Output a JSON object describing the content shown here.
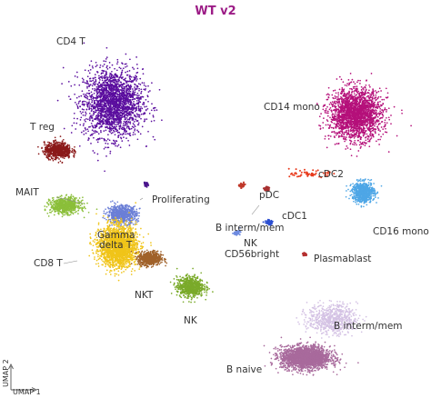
{
  "chart_data": {
    "type": "scatter",
    "title": "WT v2",
    "xlabel": "UMAP 1",
    "ylabel": "UMAP 2",
    "grid": false,
    "legend": "none",
    "title_color": "#9c1c86",
    "clusters": [
      {
        "name": "CD4 T",
        "color": "#5a0d9e",
        "center": [
          -6.7,
          7.9
        ],
        "spread": [
          2.4,
          3.0
        ],
        "density": "high"
      },
      {
        "name": "T reg",
        "color": "#8b1a1a",
        "center": [
          -11.2,
          3.7
        ],
        "spread": [
          1.1,
          0.7
        ],
        "density": "medium"
      },
      {
        "name": "MAIT",
        "color": "#8bbf3a",
        "center": [
          -10.6,
          -1.2
        ],
        "spread": [
          1.2,
          0.7
        ],
        "density": "medium"
      },
      {
        "name": "Gamma delta T",
        "color": "#6b7fd6",
        "center": [
          -6.0,
          -2.0
        ],
        "spread": [
          1.2,
          0.8
        ],
        "density": "medium"
      },
      {
        "name": "CD8 T",
        "color": "#f0c419",
        "center": [
          -6.3,
          -4.8
        ],
        "spread": [
          1.5,
          1.8
        ],
        "density": "high"
      },
      {
        "name": "NKT",
        "color": "#a0622a",
        "center": [
          -3.7,
          -5.9
        ],
        "spread": [
          0.9,
          0.6
        ],
        "density": "medium"
      },
      {
        "name": "NK",
        "color": "#7aaa2a",
        "center": [
          -0.4,
          -8.4
        ],
        "spread": [
          1.1,
          0.9
        ],
        "density": "medium"
      },
      {
        "name": "Proliferating",
        "color": "#4a148c",
        "center": [
          -4.0,
          0.7
        ],
        "spread": [
          0.15,
          0.15
        ],
        "density": "low"
      },
      {
        "name": "CD14 mono",
        "color": "#b5107a",
        "center": [
          13.1,
          6.9
        ],
        "spread": [
          2.1,
          2.2
        ],
        "density": "high"
      },
      {
        "name": "CD16 mono",
        "color": "#4ea6e6",
        "center": [
          13.7,
          0.0
        ],
        "spread": [
          0.9,
          0.9
        ],
        "density": "medium"
      },
      {
        "name": "cDC2",
        "color": "#e83a1c",
        "center": [
          9.4,
          1.6
        ],
        "spread": [
          1.5,
          0.3
        ],
        "density": "low"
      },
      {
        "name": "cDC1",
        "color": "#a83232",
        "center": [
          5.8,
          0.3
        ],
        "spread": [
          0.2,
          0.15
        ],
        "density": "low"
      },
      {
        "name": "pDC",
        "color": "#c0392b",
        "center": [
          3.8,
          0.6
        ],
        "spread": [
          0.2,
          0.2
        ],
        "density": "low"
      },
      {
        "name": "B interm/mem",
        "color": "#2c4fd1",
        "center": [
          6.0,
          -2.7
        ],
        "spread": [
          0.3,
          0.2
        ],
        "density": "low"
      },
      {
        "name": "NK CD56bright",
        "color": "#6e8be0",
        "center": [
          3.4,
          -3.6
        ],
        "spread": [
          0.25,
          0.2
        ],
        "density": "low"
      },
      {
        "name": "Plasmablast",
        "color": "#b53030",
        "center": [
          8.9,
          -5.5
        ],
        "spread": [
          0.15,
          0.1
        ],
        "density": "low"
      },
      {
        "name": "B interm/mem",
        "color": "#d4c2e4",
        "center": [
          11.2,
          -11.3
        ],
        "spread": [
          2.0,
          1.3
        ],
        "density": "medium"
      },
      {
        "name": "B naive",
        "color": "#a86a9c",
        "center": [
          9.0,
          -14.7
        ],
        "spread": [
          2.0,
          1.0
        ],
        "density": "high"
      }
    ],
    "labels": [
      {
        "text": "CD4 T",
        "near": "CD4 T"
      },
      {
        "text": "T reg",
        "near": "T reg"
      },
      {
        "text": "MAIT",
        "near": "MAIT"
      },
      {
        "text": "Gamma",
        "near": "Gamma delta T"
      },
      {
        "text": "delta T",
        "near": "Gamma delta T"
      },
      {
        "text": "CD8 T",
        "near": "CD8 T"
      },
      {
        "text": "NKT",
        "near": "NKT"
      },
      {
        "text": "NK",
        "near": "NK"
      },
      {
        "text": "Proliferating",
        "near": "Proliferating"
      },
      {
        "text": "CD14 mono",
        "near": "CD14 mono"
      },
      {
        "text": "CD16 mono",
        "near": "CD16 mono"
      },
      {
        "text": "cDC2",
        "near": "cDC2"
      },
      {
        "text": "cDC1",
        "near": "cDC1"
      },
      {
        "text": "pDC",
        "near": "pDC"
      },
      {
        "text": "B interm/mem",
        "near": "B interm/mem"
      },
      {
        "text": "NK",
        "near": "NK CD56bright"
      },
      {
        "text": "CD56bright",
        "near": "NK CD56bright"
      },
      {
        "text": "Plasmablast",
        "near": "Plasmablast"
      },
      {
        "text": "B interm/mem",
        "near": "B interm/mem lower"
      },
      {
        "text": "B naive",
        "near": "B naive"
      }
    ]
  }
}
